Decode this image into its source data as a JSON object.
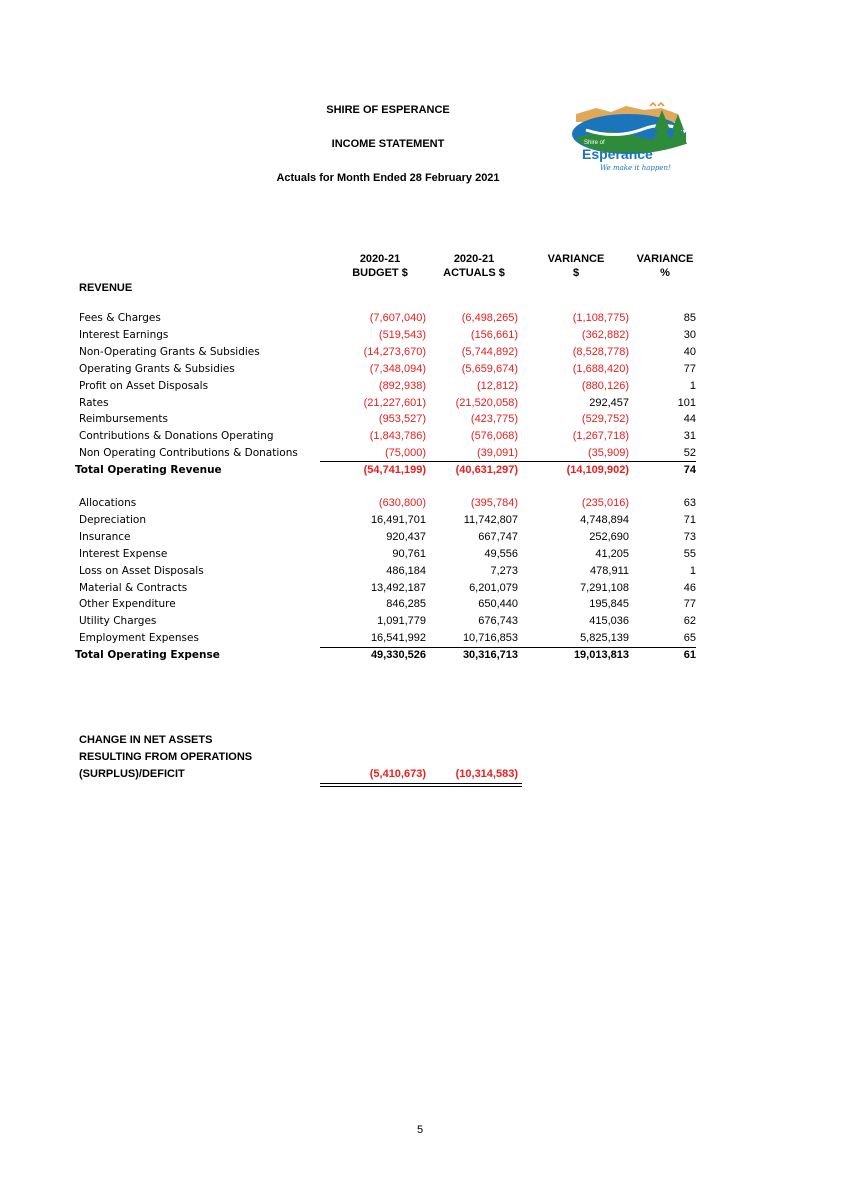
{
  "header": {
    "org": "SHIRE OF ESPERANCE",
    "title": "INCOME STATEMENT",
    "subtitle": "Actuals for Month Ended 28 February 2021"
  },
  "logo": {
    "name_small": "Shire of",
    "name": "Esperance",
    "tagline": "We make it happen!",
    "colors": {
      "blue": "#1a75bc",
      "green": "#2e8b3a",
      "sand": "#e0a85a",
      "orange": "#f28c28"
    }
  },
  "columns": {
    "budget": [
      "2020-21",
      "BUDGET $"
    ],
    "actuals": [
      "2020-21",
      "ACTUALS $"
    ],
    "variance": [
      "VARIANCE",
      "$"
    ],
    "variance_pct": [
      "VARIANCE",
      "%"
    ]
  },
  "revenue": {
    "heading": "REVENUE",
    "rows": [
      {
        "label": "Fees & Charges",
        "budget": "(7,607,040)",
        "actual": "(6,498,265)",
        "variance": "(1,108,775)",
        "pct": "85"
      },
      {
        "label": "Interest Earnings",
        "budget": "(519,543)",
        "actual": "(156,661)",
        "variance": "(362,882)",
        "pct": "30"
      },
      {
        "label": "Non-Operating Grants & Subsidies",
        "budget": "(14,273,670)",
        "actual": "(5,744,892)",
        "variance": "(8,528,778)",
        "pct": "40"
      },
      {
        "label": "Operating Grants & Subsidies",
        "budget": "(7,348,094)",
        "actual": "(5,659,674)",
        "variance": "(1,688,420)",
        "pct": "77"
      },
      {
        "label": "Profit on Asset Disposals",
        "budget": "(892,938)",
        "actual": "(12,812)",
        "variance": "(880,126)",
        "pct": "1"
      },
      {
        "label": "Rates",
        "budget": "(21,227,601)",
        "actual": "(21,520,058)",
        "variance": "292,457",
        "pct": "101"
      },
      {
        "label": "Reimbursements",
        "budget": "(953,527)",
        "actual": "(423,775)",
        "variance": "(529,752)",
        "pct": "44"
      },
      {
        "label": "Contributions & Donations Operating",
        "budget": "(1,843,786)",
        "actual": "(576,068)",
        "variance": "(1,267,718)",
        "pct": "31"
      },
      {
        "label": "Non Operating Contributions & Donations",
        "budget": "(75,000)",
        "actual": "(39,091)",
        "variance": "(35,909)",
        "pct": "52"
      }
    ],
    "total": {
      "label": "Total Operating Revenue",
      "budget": "(54,741,199)",
      "actual": "(40,631,297)",
      "variance": "(14,109,902)",
      "pct": "74"
    }
  },
  "expense": {
    "rows": [
      {
        "label": "Allocations",
        "budget": "(630,800)",
        "actual": "(395,784)",
        "variance": "(235,016)",
        "pct": "63"
      },
      {
        "label": "Depreciation",
        "budget": "16,491,701",
        "actual": "11,742,807",
        "variance": "4,748,894",
        "pct": "71"
      },
      {
        "label": "Insurance",
        "budget": "920,437",
        "actual": "667,747",
        "variance": "252,690",
        "pct": "73"
      },
      {
        "label": "Interest Expense",
        "budget": "90,761",
        "actual": "49,556",
        "variance": "41,205",
        "pct": "55"
      },
      {
        "label": "Loss on Asset Disposals",
        "budget": "486,184",
        "actual": "7,273",
        "variance": "478,911",
        "pct": "1"
      },
      {
        "label": "Material & Contracts",
        "budget": "13,492,187",
        "actual": "6,201,079",
        "variance": "7,291,108",
        "pct": "46"
      },
      {
        "label": "Other Expenditure",
        "budget": "846,285",
        "actual": "650,440",
        "variance": "195,845",
        "pct": "77"
      },
      {
        "label": "Utility Charges",
        "budget": "1,091,779",
        "actual": "676,743",
        "variance": "415,036",
        "pct": "62"
      },
      {
        "label": "Employment Expenses",
        "budget": "16,541,992",
        "actual": "10,716,853",
        "variance": "5,825,139",
        "pct": "65"
      }
    ],
    "total": {
      "label": "Total Operating Expense",
      "budget": "49,330,526",
      "actual": "30,316,713",
      "variance": "19,013,813",
      "pct": "61"
    }
  },
  "net": {
    "lines": [
      "CHANGE IN NET ASSETS",
      "RESULTING FROM OPERATIONS",
      "(SURPLUS)/DEFICIT"
    ],
    "budget": "(5,410,673)",
    "actual": "(10,314,583)"
  },
  "page_number": "5"
}
